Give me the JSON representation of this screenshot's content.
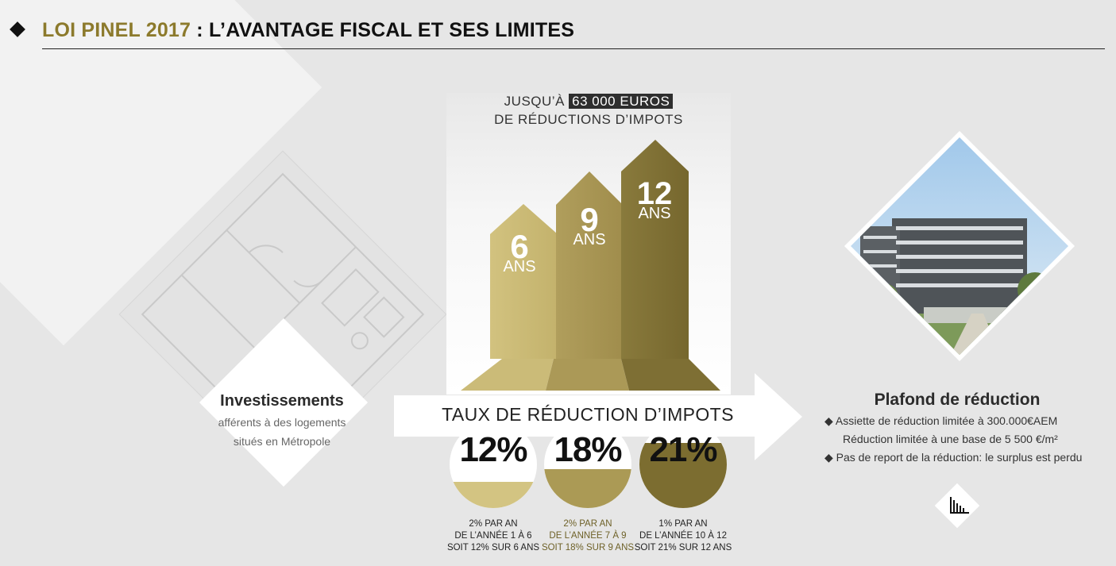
{
  "header": {
    "title_gold": "LOI PINEL 2017",
    "title_sep": " : ",
    "title_dark": "L’AVANTAGE FISCAL ET SES LIMITES"
  },
  "left": {
    "title": "Investissements",
    "line1": "afférents à des logements",
    "line2": "situés en Métropole"
  },
  "center": {
    "headline_pre": "JUSQU’À ",
    "headline_amount": "63 000 EUROS",
    "headline_line2": "DE RÉDUCTIONS D’IMPOTS",
    "bars": [
      {
        "number": "6",
        "unit": "ANS"
      },
      {
        "number": "9",
        "unit": "ANS"
      },
      {
        "number": "12",
        "unit": "ANS"
      }
    ],
    "taux_label": "TAUX DE RÉDUCTION D’IMPOTS",
    "rates": [
      {
        "value": "12%",
        "fill_fraction": 0.3,
        "color": "#d3c482"
      },
      {
        "value": "18%",
        "fill_fraction": 0.45,
        "color": "#ab9a55"
      },
      {
        "value": "21%",
        "fill_fraction": 0.75,
        "color": "#7c6d30"
      }
    ],
    "notes": [
      {
        "l1": "2% PAR AN",
        "l2": "DE L’ANNÉE 1 À 6",
        "l3": "SOIT 12% SUR 6 ANS"
      },
      {
        "l1": "2% PAR AN",
        "l2": "DE L’ANNÉE 7 À 9",
        "l3": "SOIT 18% SUR 9 ANS"
      },
      {
        "l1": "1% PAR AN",
        "l2": "DE L’ANNÉE 10 À 12",
        "l3": "SOIT 21% SUR 12 ANS"
      }
    ]
  },
  "right": {
    "title": "Plafond de réduction",
    "bullet1": "◆ Assiette de réduction limitée à 300.000€AEM",
    "bullet1b": "Réduction limitée à une base de 5 500 €/m²",
    "bullet2": "◆ Pas de report de la réduction: le surplus est perdu"
  },
  "colors": {
    "gold_light": "#cfc07b",
    "gold_mid": "#a8965a",
    "gold_dark": "#7f7037",
    "title_gold": "#8c7a2c"
  },
  "icons": [
    "diamond-bullet-icon",
    "floor-plan-icon",
    "building-photo",
    "bar-chart-icon"
  ]
}
